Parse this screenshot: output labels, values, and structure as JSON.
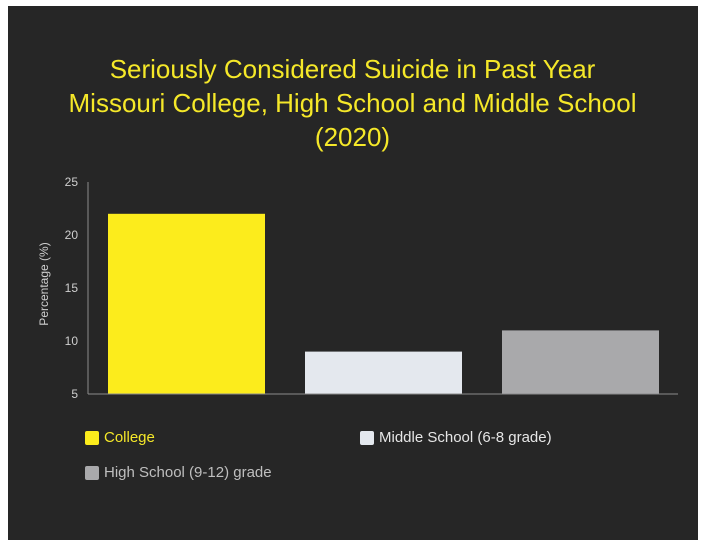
{
  "chart_data": {
    "type": "bar",
    "title_lines": [
      "Seriously Considered Suicide in Past Year",
      "Missouri College, High School and Middle School",
      "(2020)"
    ],
    "xlabel": "",
    "ylabel": "Percentage (%)",
    "ylim": [
      5,
      25
    ],
    "yticks": [
      "25",
      "20",
      "15",
      "10",
      "5"
    ],
    "grid": false,
    "legend_position": "bottom",
    "series": [
      {
        "name": "College",
        "value": 22,
        "color": "#fcec1c",
        "label_color": "#f5e829"
      },
      {
        "name": "Middle School (6-8 grade)",
        "value": 9,
        "color": "#e4e8ee",
        "label_color": "#e6e6e6"
      },
      {
        "name": "High School (9-12) grade",
        "value": 11,
        "color": "#a9a9ab",
        "label_color": "#bfbfbf"
      }
    ]
  },
  "colors": {
    "background": "#262626",
    "title": "#f5e829",
    "axis": "#8c8c8c",
    "tick_label": "#cfcfcf"
  }
}
